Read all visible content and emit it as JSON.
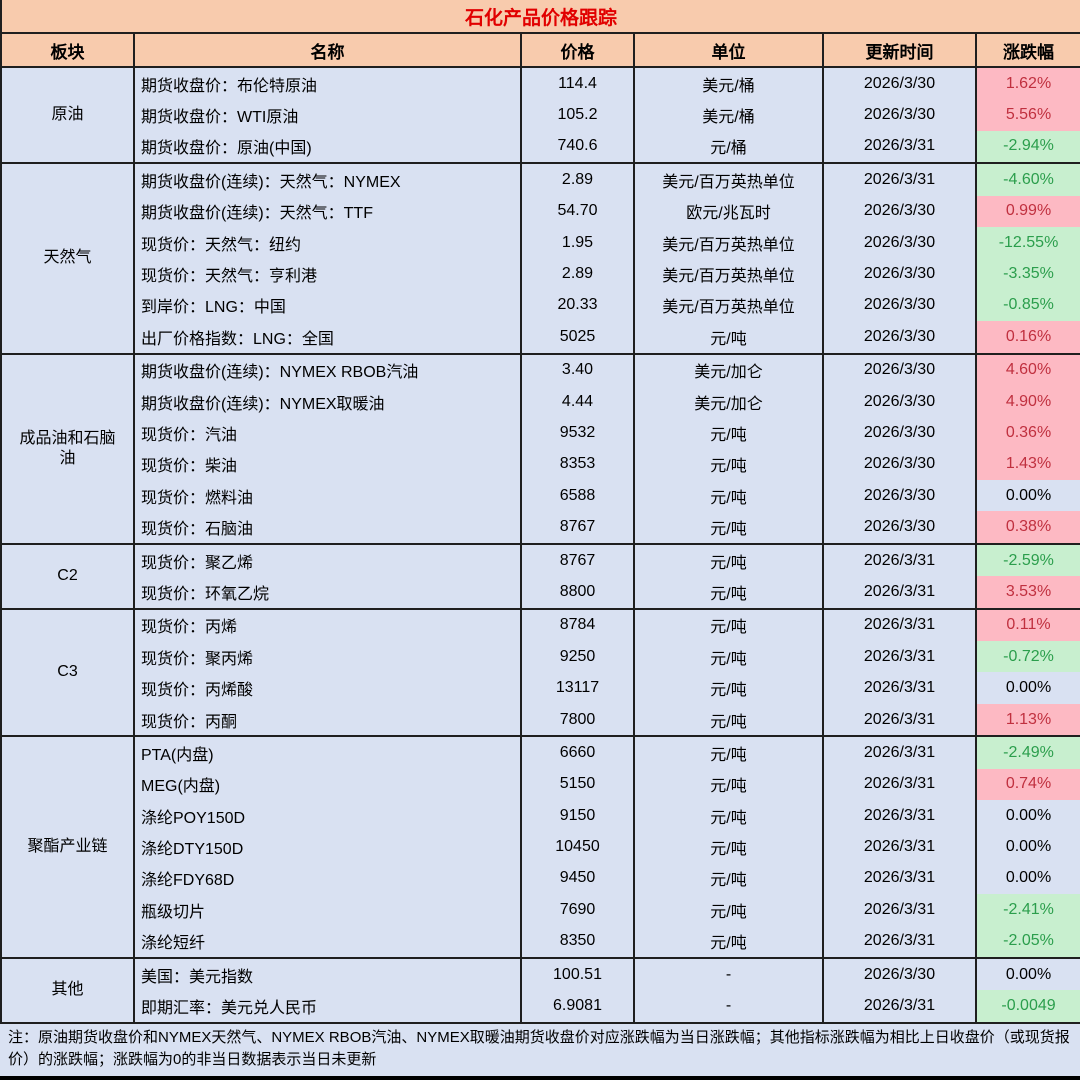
{
  "title": "石化产品价格跟踪",
  "columns": [
    "板块",
    "名称",
    "价格",
    "单位",
    "更新时间",
    "涨跌幅"
  ],
  "colors": {
    "header_bg": "#F8CBAD",
    "row_bg": "#D9E1F2",
    "border": "#1F1F1F",
    "title_text": "#E10000",
    "up_bg": "#FDB9C3",
    "up_text": "#C0303F",
    "down_bg": "#C8EFCF",
    "down_text": "#2B9E4C",
    "flat_text": "#000000"
  },
  "sections": [
    {
      "sector": "原油",
      "rows": [
        {
          "name": "期货收盘价：布伦特原油",
          "price": "114.4",
          "unit": "美元/桶",
          "date": "2026/3/30",
          "change": "1.62%",
          "trend": "up"
        },
        {
          "name": "期货收盘价：WTI原油",
          "price": "105.2",
          "unit": "美元/桶",
          "date": "2026/3/30",
          "change": "5.56%",
          "trend": "up"
        },
        {
          "name": "期货收盘价：原油(中国)",
          "price": "740.6",
          "unit": "元/桶",
          "date": "2026/3/31",
          "change": "-2.94%",
          "trend": "down"
        }
      ]
    },
    {
      "sector": "天然气",
      "rows": [
        {
          "name": "期货收盘价(连续)：天然气：NYMEX",
          "price": "2.89",
          "unit": "美元/百万英热单位",
          "date": "2026/3/31",
          "change": "-4.60%",
          "trend": "down"
        },
        {
          "name": "期货收盘价(连续)：天然气：TTF",
          "price": "54.70",
          "unit": "欧元/兆瓦时",
          "date": "2026/3/30",
          "change": "0.99%",
          "trend": "up"
        },
        {
          "name": "现货价：天然气：纽约",
          "price": "1.95",
          "unit": "美元/百万英热单位",
          "date": "2026/3/30",
          "change": "-12.55%",
          "trend": "down"
        },
        {
          "name": "现货价：天然气：亨利港",
          "price": "2.89",
          "unit": "美元/百万英热单位",
          "date": "2026/3/30",
          "change": "-3.35%",
          "trend": "down"
        },
        {
          "name": "到岸价：LNG：中国",
          "price": "20.33",
          "unit": "美元/百万英热单位",
          "date": "2026/3/30",
          "change": "-0.85%",
          "trend": "down"
        },
        {
          "name": "出厂价格指数：LNG：全国",
          "price": "5025",
          "unit": "元/吨",
          "date": "2026/3/30",
          "change": "0.16%",
          "trend": "up"
        }
      ]
    },
    {
      "sector": "成品油和石脑油",
      "rows": [
        {
          "name": "期货收盘价(连续)：NYMEX RBOB汽油",
          "price": "3.40",
          "unit": "美元/加仑",
          "date": "2026/3/30",
          "change": "4.60%",
          "trend": "up"
        },
        {
          "name": "期货收盘价(连续)：NYMEX取暖油",
          "price": "4.44",
          "unit": "美元/加仑",
          "date": "2026/3/30",
          "change": "4.90%",
          "trend": "up"
        },
        {
          "name": "现货价：汽油",
          "price": "9532",
          "unit": "元/吨",
          "date": "2026/3/30",
          "change": "0.36%",
          "trend": "up"
        },
        {
          "name": "现货价：柴油",
          "price": "8353",
          "unit": "元/吨",
          "date": "2026/3/30",
          "change": "1.43%",
          "trend": "up"
        },
        {
          "name": "现货价：燃料油",
          "price": "6588",
          "unit": "元/吨",
          "date": "2026/3/30",
          "change": "0.00%",
          "trend": "flat"
        },
        {
          "name": "现货价：石脑油",
          "price": "8767",
          "unit": "元/吨",
          "date": "2026/3/30",
          "change": "0.38%",
          "trend": "up"
        }
      ]
    },
    {
      "sector": "C2",
      "rows": [
        {
          "name": "现货价：聚乙烯",
          "price": "8767",
          "unit": "元/吨",
          "date": "2026/3/31",
          "change": "-2.59%",
          "trend": "down"
        },
        {
          "name": "现货价：环氧乙烷",
          "price": "8800",
          "unit": "元/吨",
          "date": "2026/3/31",
          "change": "3.53%",
          "trend": "up"
        }
      ]
    },
    {
      "sector": "C3",
      "rows": [
        {
          "name": "现货价：丙烯",
          "price": "8784",
          "unit": "元/吨",
          "date": "2026/3/31",
          "change": "0.11%",
          "trend": "up"
        },
        {
          "name": "现货价：聚丙烯",
          "price": "9250",
          "unit": "元/吨",
          "date": "2026/3/31",
          "change": "-0.72%",
          "trend": "down"
        },
        {
          "name": "现货价：丙烯酸",
          "price": "13117",
          "unit": "元/吨",
          "date": "2026/3/31",
          "change": "0.00%",
          "trend": "flat"
        },
        {
          "name": "现货价：丙酮",
          "price": "7800",
          "unit": "元/吨",
          "date": "2026/3/31",
          "change": "1.13%",
          "trend": "up"
        }
      ]
    },
    {
      "sector": "聚酯产业链",
      "rows": [
        {
          "name": "PTA(内盘)",
          "price": "6660",
          "unit": "元/吨",
          "date": "2026/3/31",
          "change": "-2.49%",
          "trend": "down"
        },
        {
          "name": "MEG(内盘)",
          "price": "5150",
          "unit": "元/吨",
          "date": "2026/3/31",
          "change": "0.74%",
          "trend": "up"
        },
        {
          "name": "涤纶POY150D",
          "price": "9150",
          "unit": "元/吨",
          "date": "2026/3/31",
          "change": "0.00%",
          "trend": "flat"
        },
        {
          "name": "涤纶DTY150D",
          "price": "10450",
          "unit": "元/吨",
          "date": "2026/3/31",
          "change": "0.00%",
          "trend": "flat"
        },
        {
          "name": "涤纶FDY68D",
          "price": "9450",
          "unit": "元/吨",
          "date": "2026/3/31",
          "change": "0.00%",
          "trend": "flat"
        },
        {
          "name": "瓶级切片",
          "price": "7690",
          "unit": "元/吨",
          "date": "2026/3/31",
          "change": "-2.41%",
          "trend": "down"
        },
        {
          "name": "涤纶短纤",
          "price": "8350",
          "unit": "元/吨",
          "date": "2026/3/31",
          "change": "-2.05%",
          "trend": "down"
        }
      ]
    },
    {
      "sector": "其他",
      "rows": [
        {
          "name": "美国：美元指数",
          "price": "100.51",
          "unit": "-",
          "date": "2026/3/30",
          "change": "0.00%",
          "trend": "flat"
        },
        {
          "name": "即期汇率：美元兑人民币",
          "price": "6.9081",
          "unit": "-",
          "date": "2026/3/31",
          "change": "-0.0049",
          "trend": "down"
        }
      ]
    }
  ],
  "note": "注：原油期货收盘价和NYMEX天然气、NYMEX RBOB汽油、NYMEX取暖油期货收盘价对应涨跌幅为当日涨跌幅；其他指标涨跌幅为相比上日收盘价（或现货报价）的涨跌幅；涨跌幅为0的非当日数据表示当日未更新"
}
